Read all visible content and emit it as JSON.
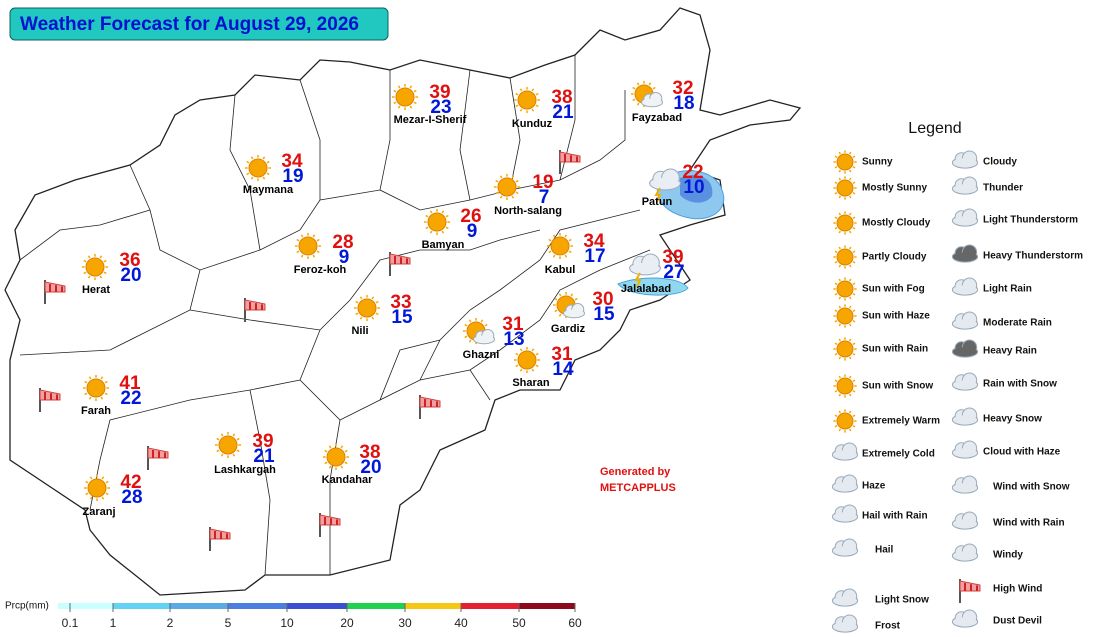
{
  "title": "Weather Forecast for August 29, 2026",
  "cities": [
    {
      "name": "Mezar-I-Sherif",
      "max": 39,
      "min": 23
    },
    {
      "name": "Kunduz",
      "max": 38,
      "min": 21
    },
    {
      "name": "Fayzabad",
      "max": 32,
      "min": 18
    },
    {
      "name": "Maymana",
      "max": 34,
      "min": 19
    },
    {
      "name": "North-salang",
      "max": 19,
      "min": 7
    },
    {
      "name": "Patun",
      "max": 22,
      "min": 10
    },
    {
      "name": "Bamyan",
      "max": 26,
      "min": 9
    },
    {
      "name": "Feroz-koh",
      "max": 28,
      "min": 9
    },
    {
      "name": "Kabul",
      "max": 34,
      "min": 17
    },
    {
      "name": "Herat",
      "max": 36,
      "min": 20
    },
    {
      "name": "Jalalabad",
      "max": 39,
      "min": 27
    },
    {
      "name": "Nili",
      "max": 33,
      "min": 15
    },
    {
      "name": "Gardiz",
      "max": 30,
      "min": 15
    },
    {
      "name": "Ghazni",
      "max": 31,
      "min": 13
    },
    {
      "name": "Sharan",
      "max": 31,
      "min": 14
    },
    {
      "name": "Farah",
      "max": 41,
      "min": 22
    },
    {
      "name": "Lashkargah",
      "max": 39,
      "min": 21
    },
    {
      "name": "Kandahar",
      "max": 38,
      "min": 20
    },
    {
      "name": "Zaranj",
      "max": 42,
      "min": 28
    }
  ],
  "legend": {
    "title": "Legend",
    "items": [
      "Sunny",
      "Mostly Sunny",
      "Mostly Cloudy",
      "Partly Cloudy",
      "Sun with Fog",
      "Sun with Haze",
      "Sun with Rain",
      "Sun with Snow",
      "Extremely Warm",
      "Extremely Cold",
      "Haze",
      "Hail with Rain",
      "Hail",
      "Light Snow",
      "Frost",
      "Cloudy",
      "Thunder",
      "Light Thunderstorm",
      "Heavy Thunderstorm",
      "Light Rain",
      "Moderate Rain",
      "Heavy Rain",
      "Rain with Snow",
      "Heavy Snow",
      "Cloud with Haze",
      "Wind with Snow",
      "Wind with Rain",
      "Windy",
      "High Wind",
      "Dust Devil"
    ]
  },
  "credit": [
    "Generated by",
    "METCAPPLUS"
  ],
  "precipitation": {
    "label": "Prcp(mm)",
    "ticks": [
      0.1,
      1,
      2,
      5,
      10,
      20,
      30,
      40,
      50,
      60
    ],
    "colors": [
      "#c8ffff",
      "#64d2f5",
      "#5aaae6",
      "#4a7fe0",
      "#3c4fd0",
      "#1ed250",
      "#f5c814",
      "#e61e32",
      "#8c0a1e"
    ]
  }
}
